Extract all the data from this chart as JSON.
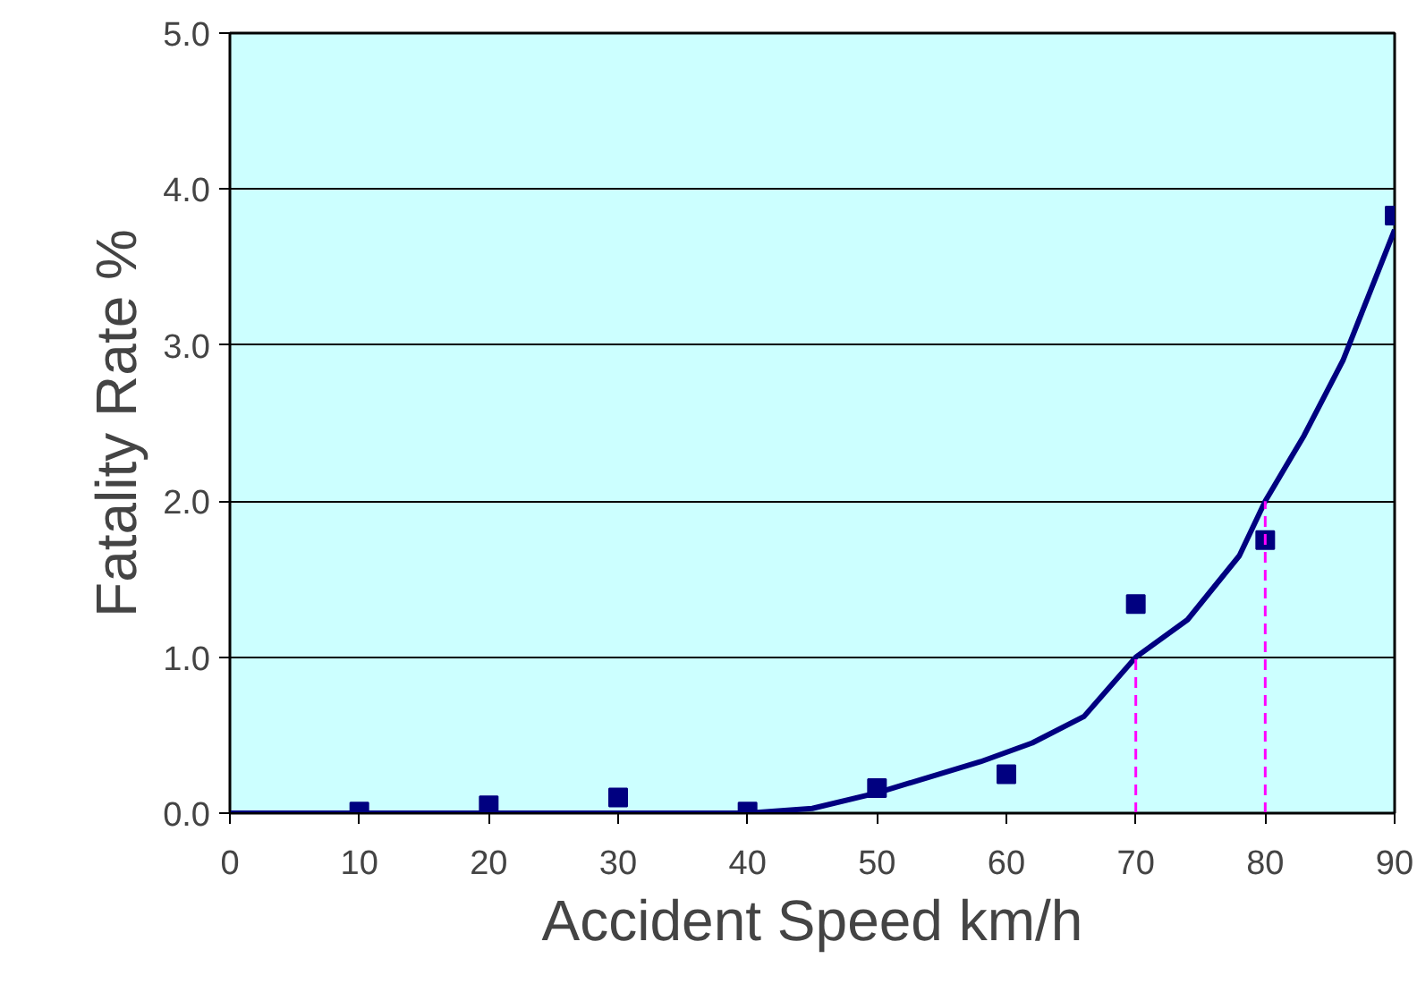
{
  "chart_data": {
    "type": "scatter",
    "xlabel": "Accident Speed km/h",
    "ylabel": "Fatality Rate %",
    "x": [
      10,
      20,
      30,
      40,
      50,
      60,
      70,
      80,
      90
    ],
    "xlim": [
      0,
      90
    ],
    "ylim": [
      0,
      5
    ],
    "xticks": [
      0,
      10,
      20,
      30,
      40,
      50,
      60,
      70,
      80,
      90
    ],
    "yticks": [
      {
        "value": 0,
        "label": "0.0"
      },
      {
        "value": 1,
        "label": "1.0"
      },
      {
        "value": 2,
        "label": "2.0"
      },
      {
        "value": 3,
        "label": "3.0"
      },
      {
        "value": 4,
        "label": "4.0"
      },
      {
        "value": 5,
        "label": "5.0"
      }
    ],
    "grid": "y",
    "series": [
      {
        "color": "#000080",
        "marker": "square",
        "values": [
          0.01,
          0.05,
          0.1,
          0.01,
          0.16,
          0.25,
          1.34,
          1.75,
          3.83
        ]
      },
      {
        "type": "line",
        "color": "#000080",
        "marker": "none",
        "line_style": "solid",
        "x": [
          0,
          10,
          20,
          30,
          40,
          45,
          50,
          58,
          62,
          66,
          70,
          74,
          78,
          80,
          83,
          86,
          90
        ],
        "values": [
          0,
          0,
          0,
          0,
          0,
          0.03,
          0.13,
          0.33,
          0.45,
          0.62,
          1.0,
          1.24,
          1.65,
          2.0,
          2.42,
          2.9,
          3.74
        ]
      },
      {
        "type": "line",
        "color": "#ff00ff",
        "marker": "none",
        "line_style": "dashed",
        "x": [
          70,
          70
        ],
        "values": [
          0,
          1.0
        ]
      },
      {
        "type": "line",
        "color": "#ff00ff",
        "marker": "none",
        "line_style": "dashed",
        "x": [
          80,
          80
        ],
        "values": [
          0,
          2.0
        ]
      }
    ]
  }
}
